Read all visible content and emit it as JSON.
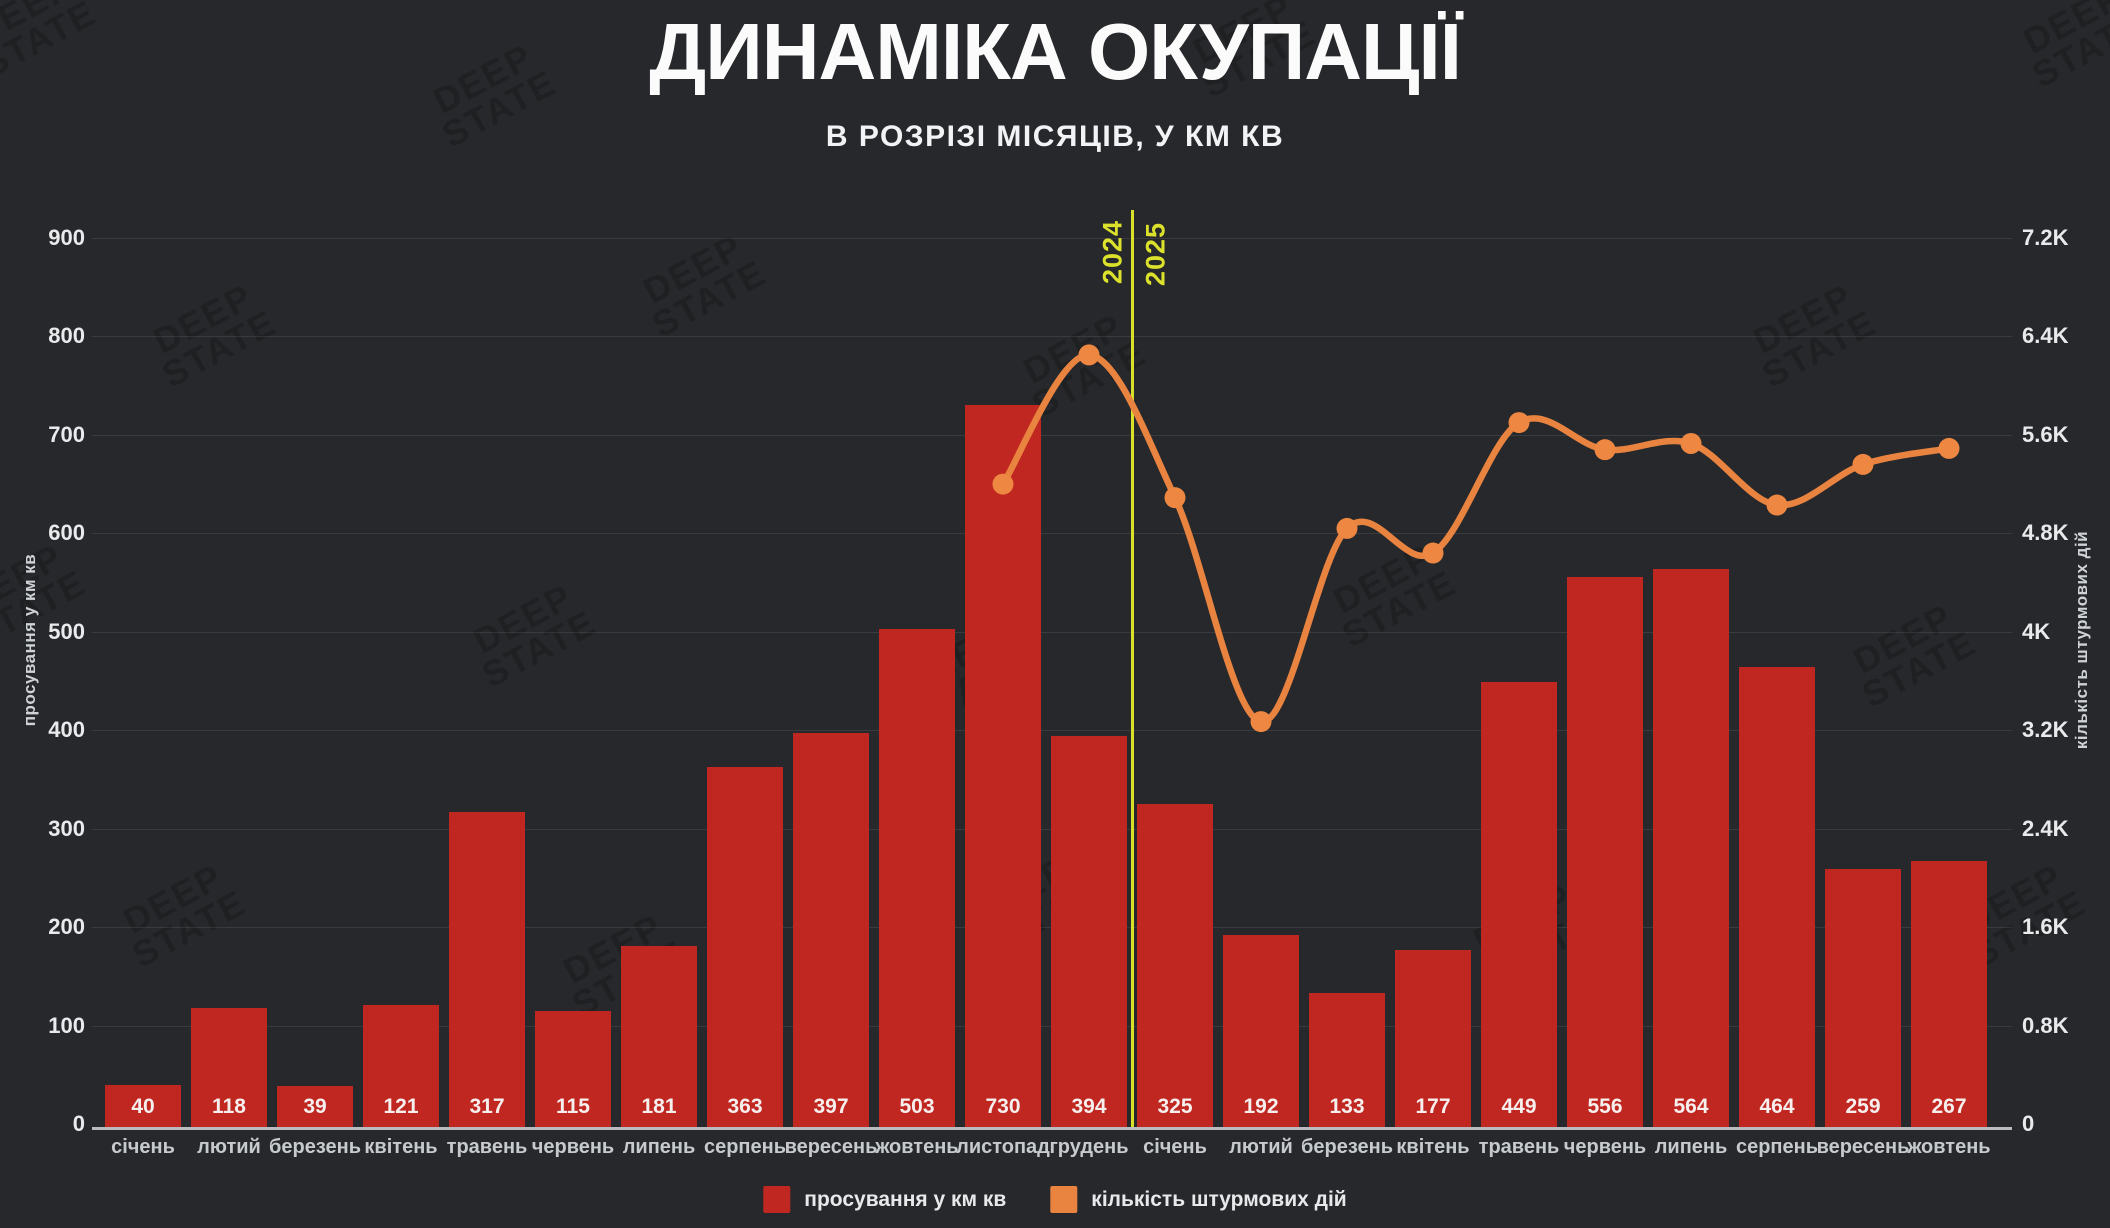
{
  "watermark": {
    "line1": "DEEP",
    "line2": "STATE"
  },
  "chart_data": {
    "type": "bar+line",
    "title": "ДИНАМІКА ОКУПАЦІЇ",
    "subtitle": "В РОЗРІЗІ МІСЯЦІВ, У КМ КВ",
    "left_axis": {
      "label": "просування у км кв",
      "max": 900,
      "ticks": [
        "0",
        "100",
        "200",
        "300",
        "400",
        "500",
        "600",
        "700",
        "800",
        "900"
      ]
    },
    "right_axis": {
      "label": "кількість штурмових дій",
      "max": 7200,
      "ticks": [
        "0",
        "0.8K",
        "1.6K",
        "2.4K",
        "3.2K",
        "4K",
        "4.8K",
        "5.6K",
        "6.4K",
        "7.2K"
      ]
    },
    "categories": [
      "січень",
      "лютий",
      "березень",
      "квітень",
      "травень",
      "червень",
      "липень",
      "серпень",
      "вересень",
      "жовтень",
      "листопад",
      "грудень",
      "січень",
      "лютий",
      "березень",
      "квітень",
      "травень",
      "червень",
      "липень",
      "серпень",
      "вересень",
      "жовтень"
    ],
    "bars": {
      "name": "просування у км кв",
      "color": "#c02720",
      "values": [
        40,
        118,
        39,
        121,
        317,
        115,
        181,
        363,
        397,
        503,
        730,
        394,
        325,
        192,
        133,
        177,
        449,
        556,
        564,
        464,
        259,
        267
      ]
    },
    "line": {
      "name": "кількість штурмових дій",
      "color": "#e98340",
      "values": [
        null,
        null,
        null,
        null,
        null,
        null,
        null,
        null,
        null,
        null,
        5200,
        6250,
        5090,
        3270,
        4840,
        4640,
        5700,
        5480,
        5530,
        5030,
        5360,
        5490
      ]
    },
    "divider": {
      "labels": [
        "2024",
        "2025"
      ],
      "color": "#d9e02a"
    },
    "legend": [
      {
        "label": "просування у км кв",
        "color": "#c02720"
      },
      {
        "label": "кількість штурмових дій",
        "color": "#e98340"
      }
    ],
    "grid": true,
    "legend_position": "bottom"
  }
}
